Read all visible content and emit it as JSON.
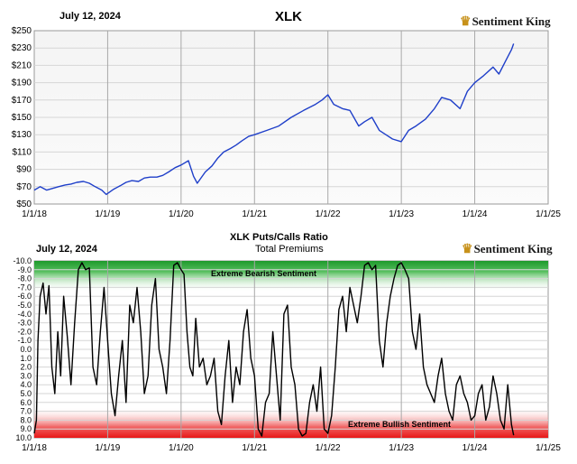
{
  "chart_data": [
    {
      "type": "line",
      "title": "XLK",
      "date_label": "July 12, 2024",
      "brand": "Sentiment King",
      "brand_icon": "crown-icon",
      "line_color": "#1f3fc9",
      "grid": true,
      "x_ticks": [
        "1/1/18",
        "1/1/19",
        "1/1/20",
        "1/1/21",
        "1/1/22",
        "1/1/23",
        "1/1/24",
        "1/1/25"
      ],
      "y_ticks": [
        "$50",
        "$70",
        "$90",
        "$110",
        "$130",
        "$150",
        "$170",
        "$190",
        "$210",
        "$230",
        "$250"
      ],
      "ylim": [
        50,
        250
      ],
      "xlim": [
        2018.0,
        2025.0
      ],
      "series": [
        {
          "x": [
            2018.0,
            2018.08,
            2018.17,
            2018.25,
            2018.33,
            2018.42,
            2018.5,
            2018.58,
            2018.67,
            2018.75,
            2018.83,
            2018.92,
            2018.98,
            2019.08,
            2019.17,
            2019.25,
            2019.33,
            2019.42,
            2019.5,
            2019.58,
            2019.67,
            2019.75,
            2019.83,
            2019.92,
            2020.0,
            2020.1,
            2020.17,
            2020.22,
            2020.33,
            2020.42,
            2020.5,
            2020.58,
            2020.67,
            2020.75,
            2020.83,
            2020.92,
            2021.0,
            2021.17,
            2021.33,
            2021.5,
            2021.67,
            2021.83,
            2021.92,
            2022.0,
            2022.08,
            2022.2,
            2022.3,
            2022.42,
            2022.5,
            2022.6,
            2022.7,
            2022.79,
            2022.88,
            2023.0,
            2023.1,
            2023.2,
            2023.33,
            2023.45,
            2023.55,
            2023.67,
            2023.8,
            2023.9,
            2024.0,
            2024.12,
            2024.25,
            2024.33,
            2024.42,
            2024.5,
            2024.53
          ],
          "values": [
            66,
            70,
            66,
            68,
            70,
            72,
            73,
            75,
            76,
            74,
            70,
            66,
            61,
            67,
            71,
            75,
            77,
            76,
            80,
            81,
            81,
            83,
            87,
            92,
            95,
            100,
            82,
            74,
            87,
            94,
            103,
            110,
            114,
            118,
            123,
            128,
            130,
            135,
            140,
            150,
            158,
            165,
            170,
            176,
            165,
            160,
            158,
            140,
            145,
            150,
            135,
            130,
            125,
            122,
            135,
            140,
            148,
            160,
            173,
            170,
            160,
            180,
            190,
            198,
            208,
            200,
            215,
            228,
            235
          ]
        }
      ]
    },
    {
      "type": "line",
      "title": "XLK Puts/Calls Ratio",
      "subtitle": "Total Premiums",
      "date_label": "July 12, 2024",
      "brand": "Sentiment King",
      "brand_icon": "crown-icon",
      "line_color": "#000000",
      "grid": true,
      "annotations": [
        "Extreme Bearish Sentiment",
        "Extreme Bullish Sentiment"
      ],
      "band_colors": {
        "top": "#1e9a2c",
        "bottom": "#e81818"
      },
      "x_ticks": [
        "1/1/18",
        "1/1/19",
        "1/1/20",
        "1/1/21",
        "1/1/22",
        "1/1/23",
        "1/1/24",
        "1/1/25"
      ],
      "y_ticks": [
        "-10.0",
        "-9.0",
        "-8.0",
        "-7.0",
        "-6.0",
        "-5.0",
        "-4.0",
        "-3.0",
        "-2.0",
        "-1.0",
        "0.0",
        "1.0",
        "2.0",
        "3.0",
        "4.0",
        "5.0",
        "6.0",
        "7.0",
        "8.0",
        "9.0",
        "10.0"
      ],
      "ylim": [
        -10,
        10
      ],
      "y_inverted": true,
      "xlim": [
        2018.0,
        2025.0
      ],
      "series": [
        {
          "x": [
            2018.0,
            2018.03,
            2018.05,
            2018.08,
            2018.12,
            2018.16,
            2018.2,
            2018.24,
            2018.28,
            2018.32,
            2018.36,
            2018.4,
            2018.45,
            2018.5,
            2018.55,
            2018.6,
            2018.65,
            2018.7,
            2018.75,
            2018.8,
            2018.85,
            2018.9,
            2018.95,
            2019.0,
            2019.05,
            2019.1,
            2019.15,
            2019.2,
            2019.25,
            2019.3,
            2019.35,
            2019.4,
            2019.45,
            2019.5,
            2019.55,
            2019.6,
            2019.65,
            2019.7,
            2019.75,
            2019.8,
            2019.85,
            2019.9,
            2019.95,
            2020.0,
            2020.04,
            2020.08,
            2020.12,
            2020.16,
            2020.2,
            2020.25,
            2020.3,
            2020.35,
            2020.4,
            2020.45,
            2020.5,
            2020.55,
            2020.6,
            2020.65,
            2020.7,
            2020.75,
            2020.8,
            2020.85,
            2020.9,
            2020.95,
            2021.0,
            2021.05,
            2021.1,
            2021.15,
            2021.2,
            2021.25,
            2021.3,
            2021.35,
            2021.4,
            2021.45,
            2021.5,
            2021.55,
            2021.6,
            2021.65,
            2021.7,
            2021.75,
            2021.8,
            2021.85,
            2021.9,
            2021.95,
            2022.0,
            2022.05,
            2022.1,
            2022.15,
            2022.2,
            2022.25,
            2022.3,
            2022.35,
            2022.4,
            2022.45,
            2022.5,
            2022.55,
            2022.6,
            2022.65,
            2022.7,
            2022.75,
            2022.8,
            2022.85,
            2022.9,
            2022.95,
            2023.0,
            2023.05,
            2023.1,
            2023.15,
            2023.2,
            2023.25,
            2023.3,
            2023.35,
            2023.4,
            2023.45,
            2023.5,
            2023.55,
            2023.6,
            2023.65,
            2023.7,
            2023.75,
            2023.8,
            2023.85,
            2023.9,
            2023.95,
            2024.0,
            2024.05,
            2024.1,
            2024.15,
            2024.2,
            2024.25,
            2024.3,
            2024.35,
            2024.4,
            2024.45,
            2024.5,
            2024.53
          ],
          "values": [
            9.5,
            8.0,
            -1.0,
            -6.0,
            -7.5,
            -4.0,
            -7.2,
            2.0,
            5.0,
            -2.0,
            3.0,
            -6.0,
            -1.5,
            4.0,
            -3.0,
            -9.0,
            -9.8,
            -9.0,
            -9.2,
            2.0,
            4.0,
            -2.0,
            -7.0,
            -1.0,
            5.0,
            7.5,
            3.0,
            -1.0,
            6.0,
            -5.0,
            -3.0,
            -7.0,
            -2.0,
            5.0,
            3.0,
            -5.0,
            -8.0,
            0.0,
            2.0,
            5.0,
            -1.0,
            -9.5,
            -9.8,
            -9.0,
            -8.5,
            -2.0,
            2.0,
            3.0,
            -3.5,
            2.0,
            1.0,
            4.0,
            3.0,
            1.0,
            7.0,
            8.5,
            3.0,
            -1.0,
            6.0,
            2.0,
            4.0,
            -2.0,
            -4.5,
            1.0,
            3.0,
            9.0,
            9.8,
            6.0,
            5.0,
            -2.0,
            3.0,
            8.0,
            -4.0,
            -5.0,
            2.0,
            4.0,
            9.0,
            9.8,
            9.5,
            6.0,
            4.0,
            7.0,
            2.0,
            9.0,
            9.5,
            7.5,
            2.0,
            -4.5,
            -6.0,
            -2.0,
            -7.0,
            -5.0,
            -3.0,
            -6.0,
            -9.5,
            -9.8,
            -9.0,
            -9.5,
            -1.0,
            2.0,
            -3.0,
            -6.0,
            -8.0,
            -9.5,
            -9.8,
            -9.0,
            -8.0,
            -2.0,
            0.0,
            -4.0,
            2.0,
            4.0,
            5.0,
            6.0,
            3.0,
            1.0,
            5.0,
            7.0,
            8.0,
            4.0,
            3.0,
            5.0,
            6.0,
            8.0,
            7.5,
            5.0,
            4.0,
            8.0,
            6.5,
            3.0,
            5.0,
            8.0,
            9.0,
            4.0,
            8.5,
            9.7
          ]
        }
      ]
    }
  ]
}
